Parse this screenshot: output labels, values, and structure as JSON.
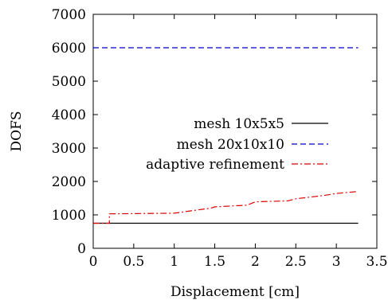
{
  "chart_data": {
    "type": "line",
    "title": "",
    "xlabel": "Displacement [cm]",
    "ylabel": "DOFS",
    "xlim": [
      0,
      3.5
    ],
    "ylim": [
      0,
      7000
    ],
    "xticks": [
      0,
      0.5,
      1,
      1.5,
      2,
      2.5,
      3,
      3.5
    ],
    "yticks": [
      0,
      1000,
      2000,
      3000,
      4000,
      5000,
      6000,
      7000
    ],
    "xtick_labels": [
      "0",
      "0.5",
      "1",
      "1.5",
      "2",
      "2.5",
      "3",
      "3.5"
    ],
    "ytick_labels": [
      "0",
      "1000",
      "2000",
      "3000",
      "4000",
      "5000",
      "6000",
      "7000"
    ],
    "grid": false,
    "legend_position": "center-right",
    "series": [
      {
        "name": "mesh 10x5x5",
        "color": "#000000",
        "dash": "solid",
        "x": [
          0,
          3.27
        ],
        "y": [
          750,
          750
        ]
      },
      {
        "name": "mesh 20x10x10",
        "color": "#0000cc",
        "dash": "dashed",
        "x": [
          0,
          3.27
        ],
        "y": [
          6000,
          6000
        ]
      },
      {
        "name": "adaptive refinement",
        "color": "#dd0000",
        "dash": "dashdot",
        "x": [
          0,
          0.2,
          0.2,
          0.6,
          1.0,
          1.2,
          1.45,
          1.5,
          1.9,
          2.0,
          2.4,
          2.5,
          2.85,
          3.0,
          3.27
        ],
        "y": [
          750,
          750,
          1030,
          1040,
          1050,
          1120,
          1200,
          1240,
          1290,
          1390,
          1420,
          1480,
          1580,
          1640,
          1700
        ]
      }
    ]
  }
}
